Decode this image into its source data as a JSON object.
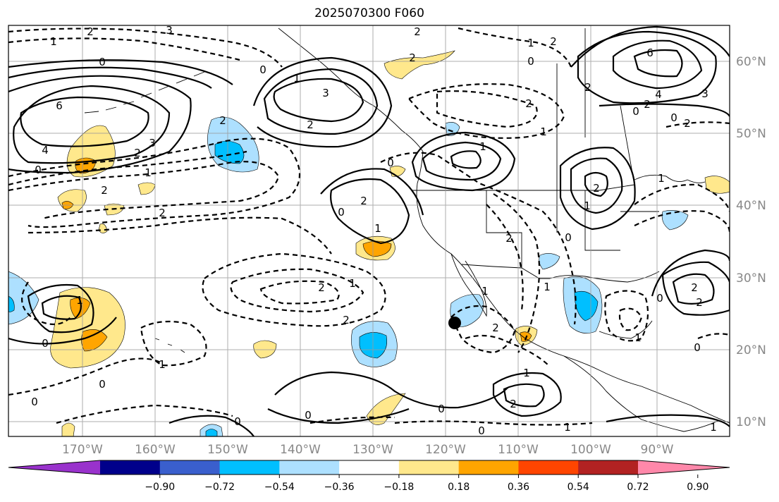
{
  "title": "2025070300 F060",
  "lon_ticks": [
    "170°W",
    "160°W",
    "150°W",
    "140°W",
    "130°W",
    "120°W",
    "110°W",
    "100°W",
    "90°W"
  ],
  "lat_ticks": [
    "60°N",
    "50°N",
    "40°N",
    "30°N",
    "20°N",
    "10°N"
  ],
  "colorbar": {
    "colors": [
      "#9932CC",
      "#00008B",
      "#3A5FCD",
      "#00BFFF",
      "#ADE0FF",
      "#FFFFFF",
      "#FFE88C",
      "#FFA500",
      "#FF4500",
      "#B22222",
      "#FF88AA"
    ],
    "labels": [
      "−0.90",
      "−0.72",
      "−0.54",
      "−0.36",
      "−0.18",
      "0.18",
      "0.36",
      "0.54",
      "0.72",
      "0.90"
    ]
  },
  "contour_labels": [
    "1",
    "2",
    "3",
    "0",
    "6",
    "3",
    "4",
    "0",
    "2",
    "2",
    "2",
    "1",
    "2",
    "3",
    "0",
    "2",
    "1",
    "0",
    "2",
    "1",
    "2",
    "1",
    "2",
    "2",
    "0",
    "1",
    "2",
    "1",
    "0",
    "1",
    "2",
    "2",
    "0",
    "1",
    "2",
    "6",
    "4",
    "0",
    "2",
    "2",
    "3",
    "0",
    "1",
    "2",
    "2",
    "0",
    "1",
    "1",
    "1",
    "0",
    "2",
    "1",
    "0",
    "0",
    "2",
    "2",
    "1",
    "0",
    "0",
    "0",
    "0",
    "1",
    "2",
    "1",
    "0",
    "1"
  ],
  "marker": "storm-position-marker"
}
